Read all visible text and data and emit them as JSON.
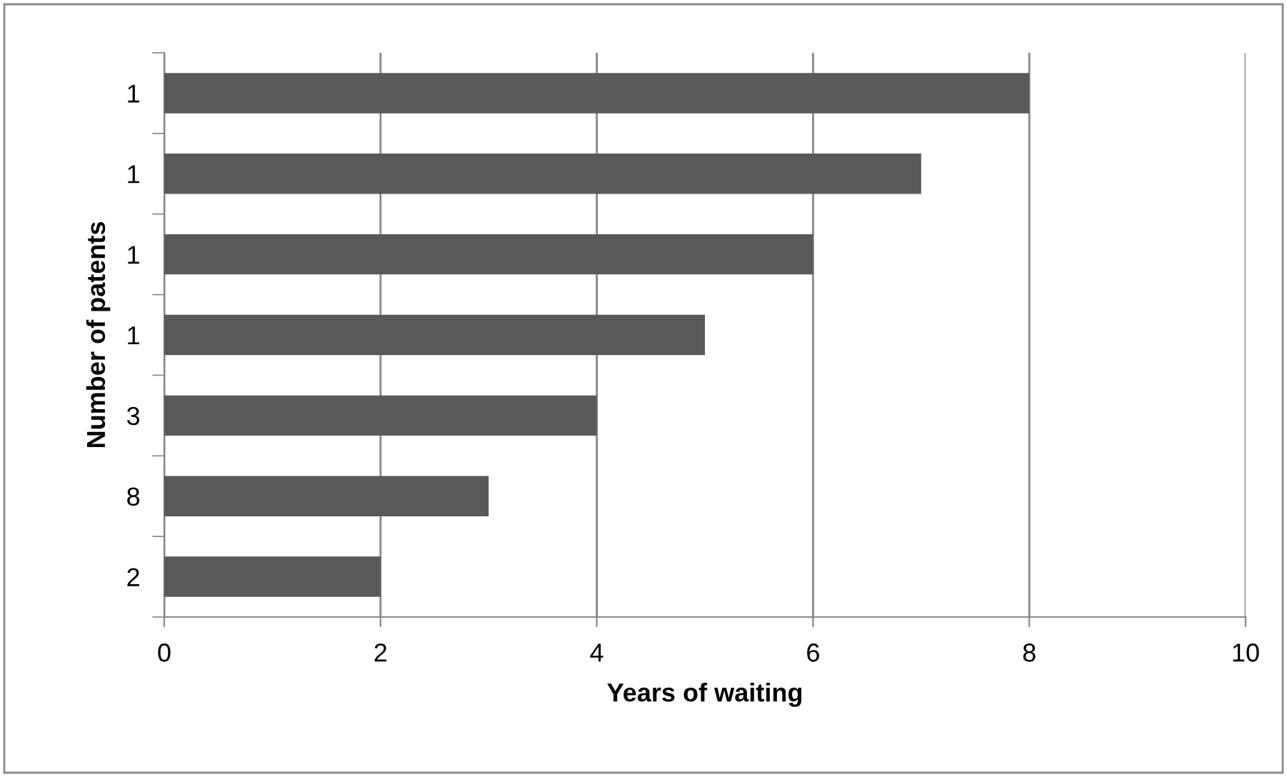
{
  "chart_data": {
    "type": "bar",
    "orientation": "horizontal",
    "xlabel": "Years of waiting",
    "ylabel": "Number of patents",
    "categories": [
      "1",
      "1",
      "1",
      "1",
      "3",
      "8",
      "2"
    ],
    "values": [
      8,
      7,
      6,
      5,
      4,
      3,
      2
    ],
    "color": "#595959",
    "xlim": [
      0,
      10
    ],
    "xticks": [
      0,
      2,
      4,
      6,
      8,
      10
    ],
    "grid": "x",
    "legend": false
  }
}
